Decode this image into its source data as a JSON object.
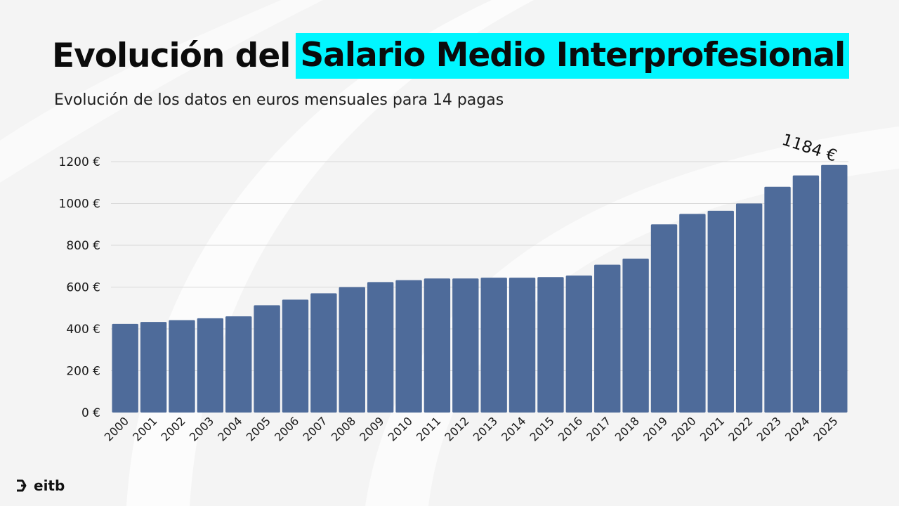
{
  "title": {
    "plain": "Evolución del",
    "highlight": "Salario Medio Interprofesional"
  },
  "subtitle": "Evolución de los datos en euros mensuales para 14 pagas",
  "callout": "1184 €",
  "logo": "eitb",
  "colors": {
    "bar": "#4e6b9a",
    "highlight": "#00f6ff",
    "grid": "#d8d8d8",
    "text": "#1a1a1a"
  },
  "chart_data": {
    "type": "bar",
    "title": "Evolución del Salario Medio Interprofesional",
    "subtitle": "Evolución de los datos en euros mensuales para 14 pagas",
    "categories": [
      "2000",
      "2001",
      "2002",
      "2003",
      "2004",
      "2005",
      "2006",
      "2007",
      "2008",
      "2009",
      "2010",
      "2011",
      "2012",
      "2013",
      "2014",
      "2015",
      "2016",
      "2017",
      "2018",
      "2019",
      "2020",
      "2021",
      "2022",
      "2023",
      "2024",
      "2025"
    ],
    "values": [
      424,
      433,
      442,
      451,
      460,
      513,
      540,
      570,
      600,
      624,
      633,
      641,
      641,
      645,
      645,
      648,
      655,
      707,
      736,
      900,
      950,
      965,
      1000,
      1080,
      1134,
      1184
    ],
    "yticks": [
      "0 €",
      "200 €",
      "400 €",
      "600 €",
      "800 €",
      "1000 €",
      "1200 €"
    ],
    "ytick_values": [
      0,
      200,
      400,
      600,
      800,
      1000,
      1200
    ],
    "ylim": [
      0,
      1200
    ],
    "grid": true,
    "annotation": {
      "category": "2025",
      "text": "1184 €"
    }
  }
}
